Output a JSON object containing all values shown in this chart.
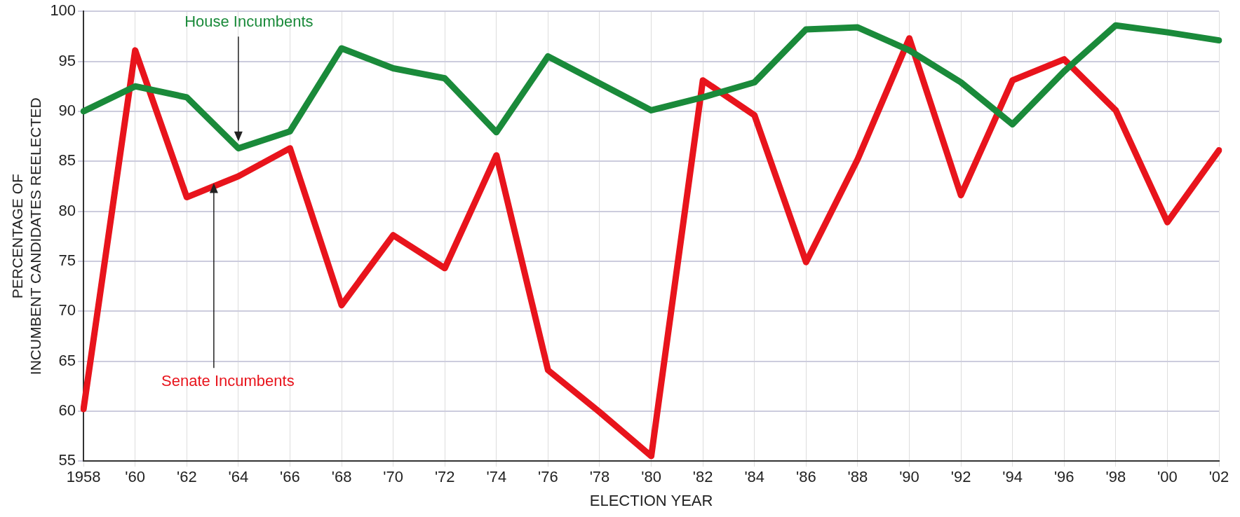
{
  "chart_data": {
    "type": "line",
    "xlabel": "ELECTION YEAR",
    "ylabel": "PERCENTAGE OF\nINCUMBENT CANDIDATES REELECTED",
    "categories": [
      "1958",
      "'60",
      "'62",
      "'64",
      "'66",
      "'68",
      "'70",
      "'72",
      "'74",
      "'76",
      "'78",
      "'80",
      "'82",
      "'84",
      "'86",
      "'88",
      "'90",
      "'92",
      "'94",
      "'96",
      "'98",
      "'00",
      "'02"
    ],
    "series": [
      {
        "name": "House Incumbents",
        "color": "#1a8a3a",
        "values": [
          90,
          92.5,
          91.4,
          86.3,
          88,
          96.3,
          94.3,
          93.3,
          87.9,
          95.5,
          92.8,
          90.1,
          91.4,
          92.9,
          98.2,
          98.4,
          96.1,
          92.9,
          88.7,
          94,
          98.6,
          97.9,
          97.1
        ]
      },
      {
        "name": "Senate Incumbents",
        "color": "#e8141c",
        "values": [
          60.2,
          96.1,
          81.4,
          83.5,
          86.3,
          70.6,
          77.6,
          74.3,
          85.6,
          64.1,
          59.9,
          55.5,
          93.1,
          89.6,
          74.9,
          85.2,
          97.3,
          81.6,
          93.1,
          95.2,
          90.1,
          78.9,
          86.1
        ]
      }
    ],
    "ylim": [
      55,
      100
    ],
    "yticks": [
      55,
      60,
      65,
      70,
      75,
      80,
      85,
      90,
      95,
      100
    ],
    "grid": true,
    "legend": false,
    "marker": "none",
    "line_style": "solid"
  }
}
